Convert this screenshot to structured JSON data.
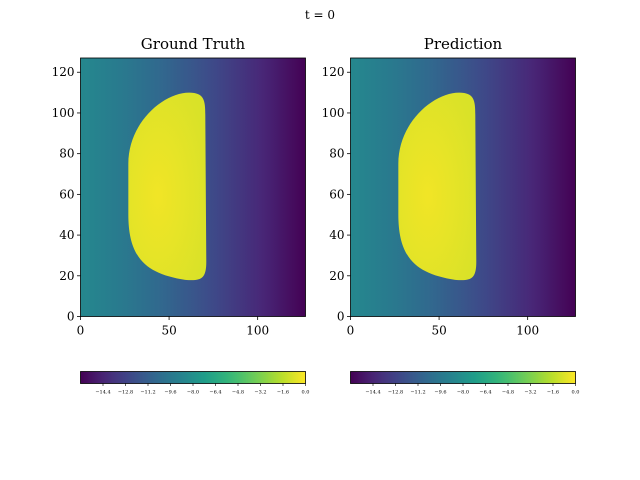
{
  "figure": {
    "suptitle": "t = 0"
  },
  "colors": {
    "viridis": [
      "#440154",
      "#482878",
      "#3e4989",
      "#31688e",
      "#26828e",
      "#1f9e89",
      "#35b779",
      "#6ece58",
      "#b5de2b",
      "#fde725"
    ]
  },
  "chart_data": [
    {
      "type": "heatmap",
      "title": "Ground Truth",
      "colormap": "viridis",
      "xlim": [
        0,
        127
      ],
      "ylim": [
        0,
        127
      ],
      "xticks": [
        0,
        50,
        100
      ],
      "yticks": [
        0,
        20,
        40,
        60,
        80,
        100,
        120
      ],
      "value_range": [
        -16.0,
        0.0
      ],
      "background": {
        "description": "horizontal gradient",
        "value_at_x0": -8.6,
        "value_at_x127": -16.0
      },
      "blob": {
        "value_center": -0.3,
        "value_edge": -0.9,
        "x_min": 27,
        "x_max": 71,
        "y_min": 18,
        "y_max": 110
      },
      "colorbar": {
        "orientation": "horizontal",
        "range": [
          -16.0,
          0.0
        ],
        "ticks": [
          -14.4,
          -12.8,
          -11.2,
          -9.6,
          -8.0,
          -6.4,
          -4.8,
          -3.2,
          -1.6,
          0.0
        ],
        "tick_labels": [
          "−14.4",
          "−12.8",
          "−11.2",
          "−9.6",
          "−8.0",
          "−6.4",
          "−4.8",
          "−3.2",
          "−1.6",
          "0.0"
        ]
      }
    },
    {
      "type": "heatmap",
      "title": "Prediction",
      "colormap": "viridis",
      "xlim": [
        0,
        127
      ],
      "ylim": [
        0,
        127
      ],
      "xticks": [
        0,
        50,
        100
      ],
      "yticks": [
        0,
        20,
        40,
        60,
        80,
        100,
        120
      ],
      "value_range": [
        -16.0,
        0.0
      ],
      "background": {
        "description": "horizontal gradient",
        "value_at_x0": -8.6,
        "value_at_x127": -16.0
      },
      "blob": {
        "value_center": -0.3,
        "value_edge": -0.9,
        "x_min": 27,
        "x_max": 71,
        "y_min": 18,
        "y_max": 110
      },
      "colorbar": {
        "orientation": "horizontal",
        "range": [
          -16.0,
          0.0
        ],
        "ticks": [
          -14.4,
          -12.8,
          -11.2,
          -9.6,
          -8.0,
          -6.4,
          -4.8,
          -3.2,
          -1.6,
          0.0
        ],
        "tick_labels": [
          "−14.4",
          "−12.8",
          "−11.2",
          "−9.6",
          "−8.0",
          "−6.4",
          "−4.8",
          "−3.2",
          "−1.6",
          "0.0"
        ]
      }
    }
  ]
}
